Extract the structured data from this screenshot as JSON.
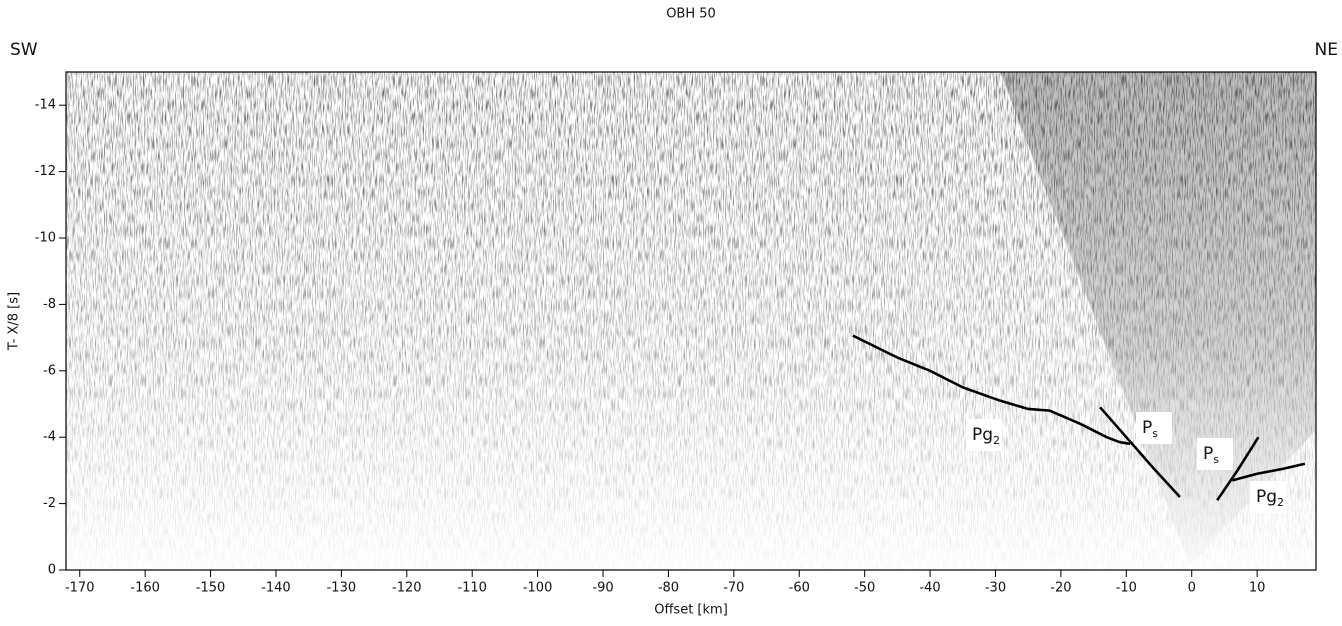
{
  "chart_data": {
    "type": "line",
    "title": "OBH 50",
    "left_label": "SW",
    "right_label": "NE",
    "x_label": "Offset [km]",
    "y_label": "T- X/8 [s]",
    "xlim": [
      -172.1,
      19
    ],
    "ylim": [
      0,
      -15
    ],
    "xticks": [
      -170,
      -160,
      -150,
      -140,
      -130,
      -120,
      -110,
      -100,
      -90,
      -80,
      -70,
      -60,
      -50,
      -40,
      -30,
      -20,
      -10,
      0,
      10
    ],
    "yticks": [
      0,
      -2,
      -4,
      -6,
      -8,
      -10,
      -12,
      -14
    ],
    "lines": [
      {
        "color": "#000000",
        "x": [
          -51.8,
          -45,
          -40,
          -35,
          -29.3,
          -25,
          -21.7,
          -17,
          -13,
          -11,
          -9.4
        ],
        "y": [
          -7.06,
          -6.4,
          -6.0,
          -5.5,
          -5.1,
          -4.85,
          -4.8,
          -4.4,
          -4.0,
          -3.85,
          -3.8
        ]
      },
      {
        "color": "#000000",
        "x": [
          -14,
          -10,
          -6,
          -1.8
        ],
        "y": [
          -4.9,
          -4.0,
          -3.1,
          -2.2
        ]
      },
      {
        "color": "#000000",
        "x": [
          3.9,
          7,
          10.2
        ],
        "y": [
          -2.1,
          -3.0,
          -4.0
        ]
      },
      {
        "color": "#000000",
        "x": [
          6.2,
          10,
          14,
          17.3
        ],
        "y": [
          -2.7,
          -2.9,
          -3.05,
          -3.2
        ]
      }
    ],
    "annotations": [
      {
        "text": "Pg",
        "sub": "2"
      },
      {
        "text": "P",
        "sub": "s"
      },
      {
        "text": "P",
        "sub": "s"
      },
      {
        "text": "Pg",
        "sub": "2"
      }
    ]
  }
}
